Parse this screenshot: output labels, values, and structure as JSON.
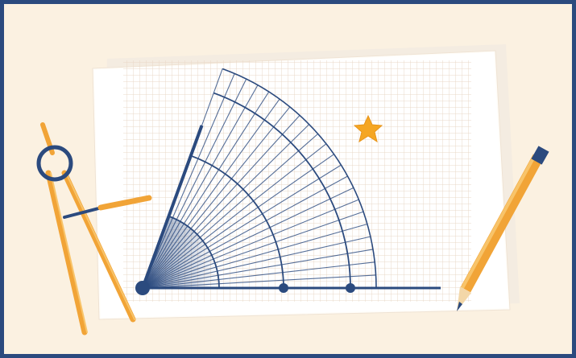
{
  "illustration": {
    "colors": {
      "frame": "#2b4a7e",
      "background": "#fbf1e1",
      "paper": "#ffffff",
      "grid": "#e8d3c2",
      "protractor": "#2b4a7e",
      "accent": "#f5a623"
    },
    "icons": [
      "compass-icon",
      "pencil-icon",
      "star-icon",
      "protractor-diagram"
    ]
  }
}
